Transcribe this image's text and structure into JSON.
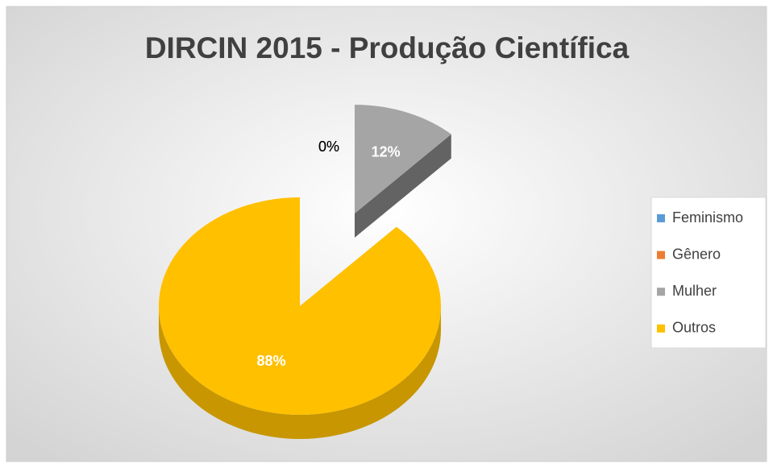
{
  "chart_data": {
    "type": "pie",
    "title": "DIRCIN 2015 - Produção Científica",
    "categories": [
      "Feminismo",
      "Gênero",
      "Mulher",
      "Outros"
    ],
    "values": [
      0,
      0,
      12,
      88
    ],
    "value_labels": [
      "0%",
      "0%",
      "12%",
      "88%"
    ],
    "colors": [
      "#5b9bd5",
      "#ed7d31",
      "#a5a5a5",
      "#ffc000"
    ],
    "legend": "right"
  }
}
